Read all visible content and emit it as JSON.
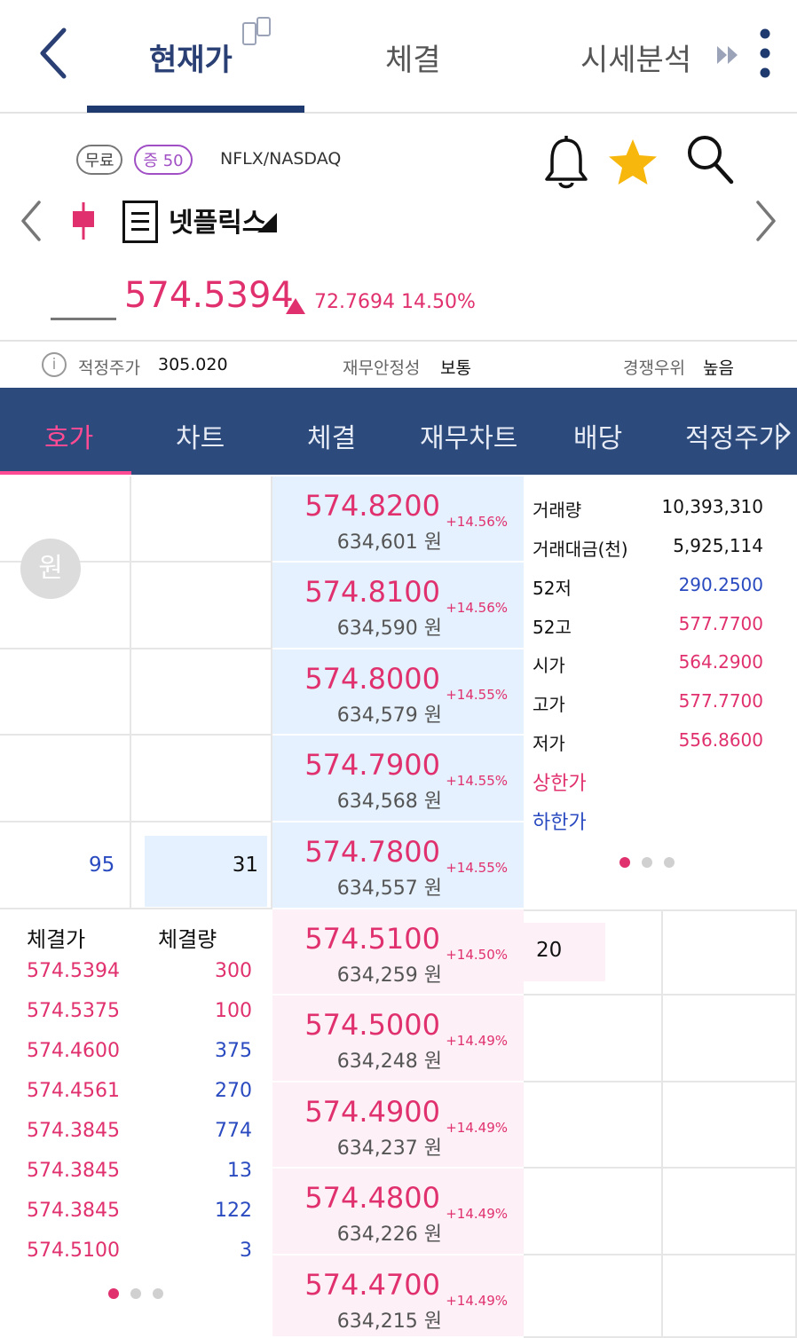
{
  "topnav": {
    "tabs": [
      "현재가",
      "체결",
      "시세분석"
    ],
    "active_tab": 0
  },
  "stock": {
    "badge_free": "무료",
    "badge_margin": "증 50",
    "ticker": "NFLX/NASDAQ",
    "name": "넷플릭스",
    "price": "574.5394",
    "change": "72.7694 14.50%"
  },
  "info": {
    "fair_price_label": "적정주가",
    "fair_price_value": "305.020",
    "stability_label": "재무안정성",
    "stability_value": "보통",
    "competition_label": "경쟁우위",
    "competition_value": "높음"
  },
  "subtabs": [
    "호가",
    "차트",
    "체결",
    "재무차트",
    "배당",
    "적정주가"
  ],
  "orderbook": {
    "currency_button": "원",
    "asks": [
      {
        "price": "574.8200",
        "pct": "+14.56%",
        "krw": "634,601 원"
      },
      {
        "price": "574.8100",
        "pct": "+14.56%",
        "krw": "634,590 원"
      },
      {
        "price": "574.8000",
        "pct": "+14.55%",
        "krw": "634,579 원"
      },
      {
        "price": "574.7900",
        "pct": "+14.55%",
        "krw": "634,568 원"
      },
      {
        "price": "574.7800",
        "pct": "+14.55%",
        "krw": "634,557 원"
      }
    ],
    "bids": [
      {
        "price": "574.5100",
        "pct": "+14.50%",
        "krw": "634,259 원"
      },
      {
        "price": "574.5000",
        "pct": "+14.49%",
        "krw": "634,248 원"
      },
      {
        "price": "574.4900",
        "pct": "+14.49%",
        "krw": "634,237 원"
      },
      {
        "price": "574.4800",
        "pct": "+14.49%",
        "krw": "634,226 원"
      },
      {
        "price": "574.4700",
        "pct": "+14.49%",
        "krw": "634,215 원"
      }
    ],
    "ask_side_qty": "95",
    "ask_qty": "31",
    "bid_qty": "20"
  },
  "stats": [
    {
      "label": "거래량",
      "value": "10,393,310",
      "color": "#111111"
    },
    {
      "label": "거래대금(천)",
      "value": "5,925,114",
      "color": "#111111"
    },
    {
      "label": "52저",
      "value": "290.2500",
      "color": "#2a4ac0"
    },
    {
      "label": "52고",
      "value": "577.7700",
      "color": "#e0316e"
    },
    {
      "label": "시가",
      "value": "564.2900",
      "color": "#e0316e"
    },
    {
      "label": "고가",
      "value": "577.7700",
      "color": "#e0316e"
    },
    {
      "label": "저가",
      "value": "556.8600",
      "color": "#e0316e"
    },
    {
      "label": "상한가",
      "value": "",
      "color": "#e0316e"
    },
    {
      "label": "하한가",
      "value": "",
      "color": "#2a4ac0"
    }
  ],
  "trades": {
    "price_header": "체결가",
    "qty_header": "체결량",
    "rows": [
      {
        "price": "574.5394",
        "qty": "300",
        "qty_color": "#e0316e"
      },
      {
        "price": "574.5375",
        "qty": "100",
        "qty_color": "#e0316e"
      },
      {
        "price": "574.4600",
        "qty": "375",
        "qty_color": "#2a4ac0"
      },
      {
        "price": "574.4561",
        "qty": "270",
        "qty_color": "#2a4ac0"
      },
      {
        "price": "574.3845",
        "qty": "774",
        "qty_color": "#2a4ac0"
      },
      {
        "price": "574.3845",
        "qty": "13",
        "qty_color": "#2a4ac0"
      },
      {
        "price": "574.3845",
        "qty": "122",
        "qty_color": "#2a4ac0"
      },
      {
        "price": "574.5100",
        "qty": "3",
        "qty_color": "#2a4ac0"
      }
    ]
  },
  "colors": {
    "up": "#e0316e",
    "down": "#2a4ac0",
    "navy": "#2c4a7c",
    "accent_pink": "#ff4b93"
  }
}
